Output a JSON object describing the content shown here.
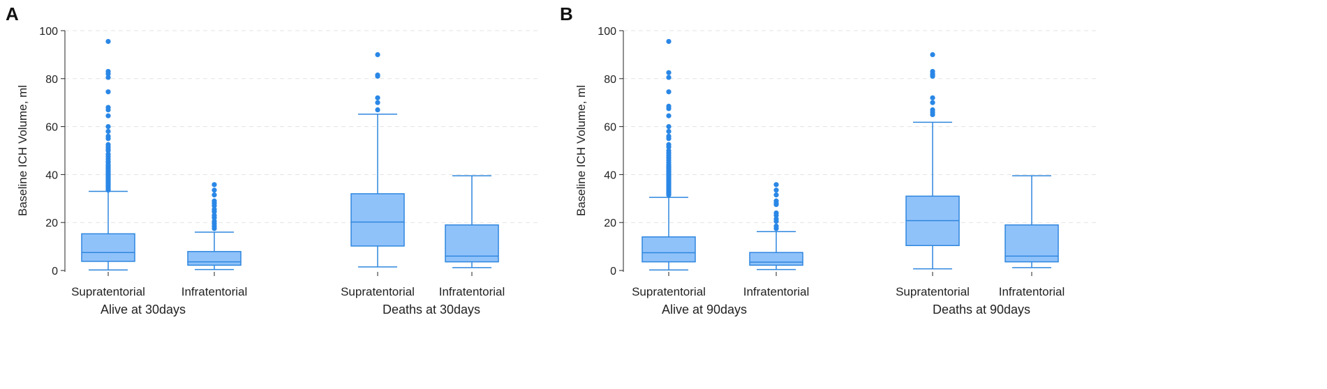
{
  "chart_data": [
    {
      "type": "boxplot",
      "panel": "A",
      "ylabel": "Baseline ICH Volume, ml",
      "ylim": [
        0,
        100
      ],
      "yticks": [
        0,
        20,
        40,
        60,
        80,
        100
      ],
      "groups": [
        {
          "label": "Alive at 30days",
          "boxes": [
            {
              "category": "Supratentorial",
              "whisker_low": 0.2,
              "q1": 3.8,
              "median": 7.5,
              "q3": 15.3,
              "whisker_high": 33,
              "outliers": [
                95.5,
                83,
                82,
                80.5,
                74.5,
                68,
                67,
                64.5,
                60,
                58,
                56,
                55,
                52.5,
                51.5,
                50.5,
                50,
                48.5,
                47.5,
                46.5,
                45.5,
                45,
                44,
                43.5,
                43,
                42.5,
                42,
                41.5,
                41,
                40.5,
                40,
                39.5,
                39,
                38.5,
                38,
                37.5,
                37,
                36.5,
                36,
                35.5,
                35,
                34.5,
                34,
                33.5
              ]
            },
            {
              "category": "Infratentorial",
              "whisker_low": 0.4,
              "q1": 2.2,
              "median": 3.6,
              "q3": 7.9,
              "whisker_high": 16,
              "outliers": [
                35.8,
                33.5,
                31.5,
                29,
                28,
                27,
                25.5,
                24.5,
                23,
                22,
                20.5,
                19.5,
                18.5,
                17.5
              ]
            }
          ]
        },
        {
          "label": "Deaths at 30days",
          "boxes": [
            {
              "category": "Supratentorial",
              "whisker_low": 1.5,
              "q1": 10.2,
              "median": 20.2,
              "q3": 32,
              "whisker_high": 65.2,
              "outliers": [
                90,
                81.5,
                81,
                72,
                70,
                67
              ]
            },
            {
              "category": "Infratentorial",
              "whisker_low": 1.2,
              "q1": 3.6,
              "median": 6,
              "q3": 19,
              "whisker_high": 39.5,
              "outliers": []
            }
          ]
        }
      ]
    },
    {
      "type": "boxplot",
      "panel": "B",
      "ylabel": "Baseline ICH Volume, ml",
      "ylim": [
        0,
        100
      ],
      "yticks": [
        0,
        20,
        40,
        60,
        80,
        100
      ],
      "groups": [
        {
          "label": "Alive at 90days",
          "boxes": [
            {
              "category": "Supratentorial",
              "whisker_low": 0.2,
              "q1": 3.6,
              "median": 7.4,
              "q3": 14,
              "whisker_high": 30.5,
              "outliers": [
                95.5,
                82.5,
                80.5,
                74.5,
                68.5,
                67.5,
                64.5,
                60,
                58,
                56,
                55,
                52.5,
                51.5,
                50,
                49,
                48,
                47,
                46,
                45,
                44,
                43.5,
                43,
                42.5,
                42,
                41.5,
                41,
                40.5,
                40,
                39.5,
                39,
                38.5,
                38,
                37.5,
                37,
                36.5,
                36,
                35.5,
                35,
                34.5,
                34,
                33.5,
                33,
                32.5,
                32,
                31.5
              ]
            },
            {
              "category": "Infratentorial",
              "whisker_low": 0.4,
              "q1": 2.2,
              "median": 3.5,
              "q3": 7.5,
              "whisker_high": 16.2,
              "outliers": [
                35.8,
                33.5,
                31.5,
                29,
                28,
                27.5,
                24,
                23,
                21.5,
                20.5,
                18.5,
                17.5
              ]
            }
          ]
        },
        {
          "label": "Deaths at 90days",
          "boxes": [
            {
              "category": "Supratentorial",
              "whisker_low": 0.7,
              "q1": 10.4,
              "median": 20.8,
              "q3": 31,
              "whisker_high": 61.8,
              "outliers": [
                90,
                83,
                82,
                81.5,
                81,
                72,
                70,
                67,
                66,
                65
              ]
            },
            {
              "category": "Infratentorial",
              "whisker_low": 1.2,
              "q1": 3.6,
              "median": 6,
              "q3": 19,
              "whisker_high": 39.5,
              "outliers": []
            }
          ]
        }
      ]
    }
  ],
  "colors": {
    "box_fill": "#90c2fa",
    "stroke": "#2e86de",
    "outlier": "#2a87e6",
    "grid": "#e3e3e3",
    "axis": "#222222"
  }
}
